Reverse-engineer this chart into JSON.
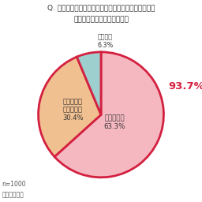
{
  "title_line1": "Q. 自転車は車道の左側を通行しなければいけませんが",
  "title_line2": "このことを知っていますか？",
  "slices": [
    63.3,
    30.4,
    6.3
  ],
  "colors": [
    "#F5B8C0",
    "#F0C090",
    "#9ECFCF"
  ],
  "edge_color": "#D42040",
  "edge_linewidth": 2.0,
  "startangle": 90,
  "pct_label": "93.7%",
  "pct_color": "#D42040",
  "note_line1": "n=1000",
  "note_line2": "（単一回答）",
  "bg_color": "#ffffff",
  "label_shiru": "知っている\n63.3%",
  "label_nantonaku": "なんとなく\n知っている\n30.4%",
  "label_shiranai": "知らない\n6.3%"
}
